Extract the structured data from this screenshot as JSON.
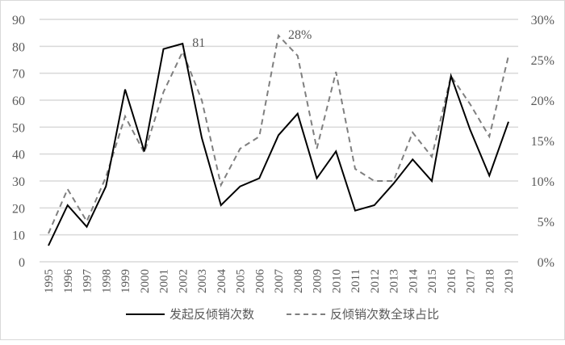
{
  "chart_data": {
    "type": "line",
    "title": "",
    "xlabel": "",
    "ylabel": "",
    "ylabel_right": "",
    "grid": true,
    "legend_position": "bottom",
    "x": [
      "1995",
      "1996",
      "1997",
      "1998",
      "1999",
      "2000",
      "2001",
      "2002",
      "2003",
      "2004",
      "2005",
      "2006",
      "2007",
      "2008",
      "2009",
      "2010",
      "2011",
      "2012",
      "2013",
      "2014",
      "2015",
      "2016",
      "2017",
      "2018",
      "2019"
    ],
    "ylim": [
      0,
      90
    ],
    "y_ticks": [
      "0",
      "10",
      "20",
      "30",
      "40",
      "50",
      "60",
      "70",
      "80",
      "90"
    ],
    "ylim_right": [
      0,
      30
    ],
    "y_ticks_right": [
      "0%",
      "5%",
      "10%",
      "15%",
      "20%",
      "25%",
      "30%"
    ],
    "series": [
      {
        "name": "发起反倾销次数",
        "axis": "left",
        "style": "solid",
        "color": "#000000",
        "values": [
          6,
          21,
          13,
          28,
          64,
          41,
          79,
          81,
          46,
          21,
          28,
          31,
          47,
          55,
          31,
          41,
          19,
          21,
          29,
          38,
          30,
          69,
          49,
          32,
          52
        ]
      },
      {
        "name": "反倾销次数全球占比",
        "axis": "right",
        "style": "dashed",
        "color": "#7f7f7f",
        "unit": "%",
        "values": [
          3.5,
          9,
          5,
          10.5,
          18,
          13.5,
          21,
          26,
          20,
          9.5,
          14,
          15.5,
          28,
          25.5,
          14,
          23.5,
          11.5,
          10,
          10,
          16,
          13,
          23,
          19.5,
          15.5,
          25.5
        ]
      }
    ],
    "annotations": [
      {
        "text": "81",
        "x": "2002",
        "series": "发起反倾销次数"
      },
      {
        "text": "28%",
        "x": "2007",
        "series": "反倾销次数全球占比"
      }
    ]
  },
  "legend": {
    "solid_label": "发起反倾销次数",
    "dashed_label": "反倾销次数全球占比"
  }
}
